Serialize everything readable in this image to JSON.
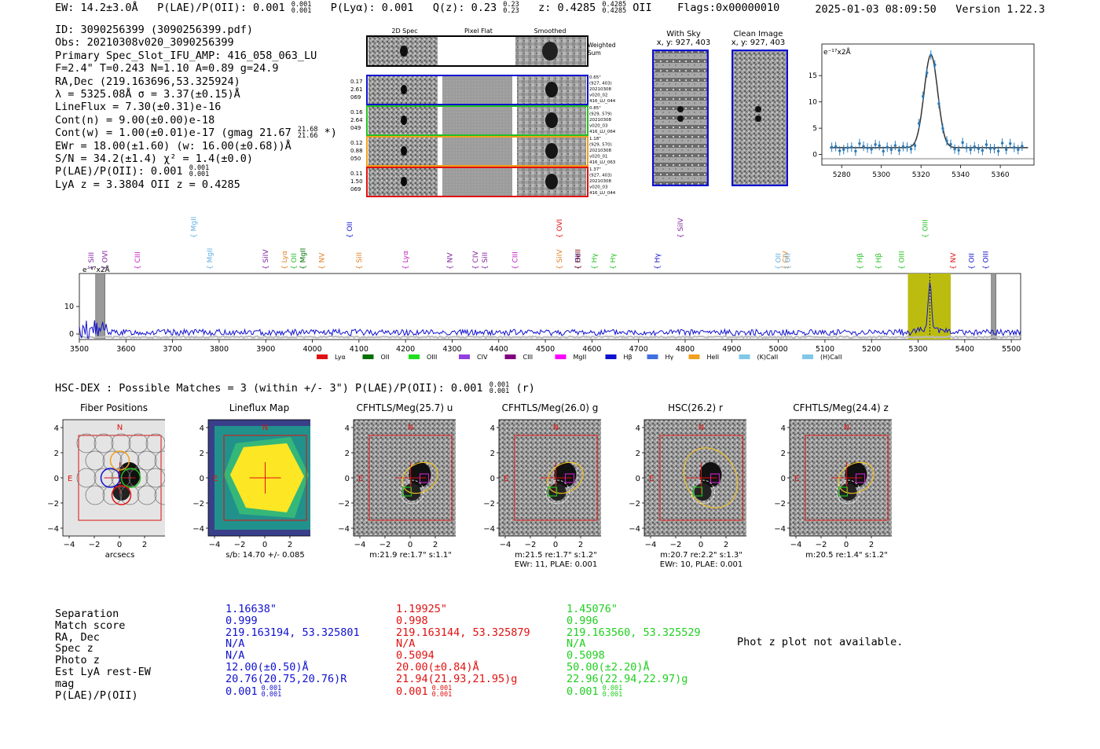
{
  "header": {
    "ew": "EW: 14.2±3.0Å",
    "plae_label": "P(LAE)/P(OII): 0.001",
    "plae_hi": "0.001",
    "plae_lo": "0.001",
    "plya": "P(Lyα): 0.001",
    "qz_label": "Q(z): 0.23",
    "qz_hi": "0.23",
    "qz_lo": "0.23",
    "z_label": "z: 0.4285",
    "z_hi": "0.4285",
    "z_lo": "0.4285",
    "z_line": "OII",
    "flags": "Flags:0x00000010",
    "datetime": "2025-01-03 08:09:50",
    "version": "Version 1.22.3"
  },
  "info": {
    "id": "ID: 3090256399 (3090256399.pdf)",
    "obs": "Obs: 20210308v020_3090256399",
    "primary": "Primary Spec_Slot_IFU_AMP: 416_058_063_LU",
    "params": "F=2.4\"  T=0.243  N=1.10  A=0.89  g=24.9",
    "radec": "RA,Dec (219.163696,53.325924)",
    "lambda": "λ = 5325.08Å  σ = 3.37(±0.15)Å",
    "lineflux": "LineFlux = 7.30(±0.31)e-16",
    "contn": "Cont(n) = 9.00(±0.00)e-18",
    "contw": "Cont(w) = 1.00(±0.01)e-17 (gmag 21.67",
    "contw_hi": "21.68",
    "contw_lo": "21.66",
    "contw_end": "*)",
    "ewr": "EWr = 18.00(±1.60) (w: 16.00(±0.68))Å",
    "sn": "S/N = 34.2(±1.4)  χ² = 1.4(±0.0)",
    "plae": "P(LAE)/P(OII): 0.001",
    "plae_hi": "0.001",
    "plae_lo": "0.001",
    "z": "LyA z = 3.3804  OII z = 0.4285"
  },
  "cutouts": {
    "col_2d": "2D Spec",
    "col_flat": "Pixel Flat",
    "col_smooth": "Smoothed",
    "weighted": "Weighted Sum",
    "rows": [
      {
        "l1": "0.17",
        "l2": "2.61",
        "l3": "069",
        "r1": "0.65\"",
        "r2": "(927, 403)",
        "r3": "20210308",
        "r4": "v020_02",
        "r5": "416_LU_044",
        "color": "#1010d0"
      },
      {
        "l1": "0.16",
        "l2": "2.64",
        "l3": "049",
        "r1": "0.85\"",
        "r2": "(929, 579)",
        "r3": "20210308",
        "r4": "v020_03",
        "r5": "416_LU_064",
        "color": "#20c020"
      },
      {
        "l1": "0.12",
        "l2": "0.88",
        "l3": "050",
        "r1": "1.18\"",
        "r2": "(929, 570)",
        "r3": "20210308",
        "r4": "v020_01",
        "r5": "416_LU_063",
        "color": "#f0a020"
      },
      {
        "l1": "0.11",
        "l2": "1.50",
        "l3": "069",
        "r1": "1.37\"",
        "r2": "(927, 403)",
        "r3": "20210308",
        "r4": "v020_03",
        "r5": "416_LU_044",
        "color": "#e01010"
      }
    ],
    "with_sky": "With Sky",
    "with_sky_xy": "x, y: 927, 403",
    "clean": "Clean Image",
    "clean_xy": "x, y: 927, 403"
  },
  "zoom_chart": {
    "ylabel": "e⁻¹⁷x2Å",
    "xticks": [
      "5280",
      "5300",
      "5320",
      "5340",
      "5360"
    ],
    "yticks": [
      "0",
      "5",
      "10",
      "15"
    ]
  },
  "chart_data": {
    "type": "line",
    "title": "",
    "xlabel": "",
    "ylabel": "e⁻¹⁷x2Å",
    "xlim": [
      3500,
      5520
    ],
    "ylim": [
      -2,
      22
    ],
    "xticks": [
      "3500",
      "3600",
      "3700",
      "3800",
      "3900",
      "4000",
      "4100",
      "4200",
      "4300",
      "4400",
      "4500",
      "4600",
      "4700",
      "4800",
      "4900",
      "5000",
      "5100",
      "5200",
      "5300",
      "5400",
      "5500"
    ],
    "yticks": [
      "0",
      "10"
    ],
    "peak": {
      "x": 5325,
      "y": 19
    },
    "lines": [
      {
        "name": "SiII",
        "x": 3530,
        "color": "#8020a0"
      },
      {
        "name": "OVI",
        "x": 3560,
        "color": "#8020a0"
      },
      {
        "name": "CIII",
        "x": 3630,
        "color": "#c020c0"
      },
      {
        "name": "MgII",
        "x": 3750,
        "color": "#60b0e0"
      },
      {
        "name": "MgII",
        "x": 3785,
        "color": "#60b0e0"
      },
      {
        "name": "SiIV",
        "x": 3905,
        "color": "#8020a0"
      },
      {
        "name": "Lyα",
        "x": 3945,
        "color": "#e08020"
      },
      {
        "name": "OII",
        "x": 3965,
        "color": "#20c020"
      },
      {
        "name": "MgII",
        "x": 3985,
        "color": "#007000"
      },
      {
        "name": "NV",
        "x": 4025,
        "color": "#e08020"
      },
      {
        "name": "OII",
        "x": 4085,
        "color": "#1010d0"
      },
      {
        "name": "SiII",
        "x": 4105,
        "color": "#e08020"
      },
      {
        "name": "Lyα",
        "x": 4205,
        "color": "#c020c0"
      },
      {
        "name": "NV",
        "x": 4300,
        "color": "#8020a0"
      },
      {
        "name": "CIV",
        "x": 4355,
        "color": "#8020a0"
      },
      {
        "name": "SiII",
        "x": 4375,
        "color": "#8020a0"
      },
      {
        "name": "CIII",
        "x": 4440,
        "color": "#c020c0"
      },
      {
        "name": "OVI",
        "x": 4535,
        "color": "#e01010"
      },
      {
        "name": "SiIV",
        "x": 4535,
        "color": "#e08020"
      },
      {
        "name": "OII",
        "x": 4575,
        "color": "#1010d0"
      },
      {
        "name": "HeII",
        "x": 4575,
        "color": "#800000"
      },
      {
        "name": "Hγ",
        "x": 4610,
        "color": "#20c020"
      },
      {
        "name": "Hγ",
        "x": 4650,
        "color": "#20c020"
      },
      {
        "name": "Hγ",
        "x": 4745,
        "color": "#1010d0"
      },
      {
        "name": "SiIV",
        "x": 4795,
        "color": "#8020a0"
      },
      {
        "name": "OII",
        "x": 5005,
        "color": "#60b0e0"
      },
      {
        "name": "CIV",
        "x": 5020,
        "color": "#e08020"
      },
      {
        "name": "OII",
        "x": 5025,
        "color": "#60b0e0"
      },
      {
        "name": "Hβ",
        "x": 5180,
        "color": "#20c020"
      },
      {
        "name": "Hβ",
        "x": 5220,
        "color": "#20c020"
      },
      {
        "name": "OIII",
        "x": 5270,
        "color": "#20c020"
      },
      {
        "name": "OIII",
        "x": 5320,
        "color": "#20c020"
      },
      {
        "name": "NV",
        "x": 5380,
        "color": "#e01010"
      },
      {
        "name": "OII",
        "x": 5420,
        "color": "#1010d0"
      },
      {
        "name": "OIII",
        "x": 5450,
        "color": "#1010d0"
      }
    ],
    "legend": [
      {
        "label": "Lyα",
        "color": "#e01010"
      },
      {
        "label": "OII",
        "color": "#007000"
      },
      {
        "label": "OIII",
        "color": "#20e020"
      },
      {
        "label": "CIV",
        "color": "#9040e0"
      },
      {
        "label": "CIII",
        "color": "#800080"
      },
      {
        "label": "MgII",
        "color": "#ff00ff"
      },
      {
        "label": "Hβ",
        "color": "#1010d0"
      },
      {
        "label": "Hγ",
        "color": "#4070e0"
      },
      {
        "label": "HeII",
        "color": "#f0a020"
      },
      {
        "label": "(K)CaII",
        "color": "#80c8e8"
      },
      {
        "label": "(H)CaII",
        "color": "#80c8e8"
      }
    ]
  },
  "hsc": {
    "line": "HSC-DEX : Possible Matches = 3 (within +/- 3\")  P(LAE)/P(OII): 0.001",
    "hi": "0.001",
    "lo": "0.001",
    "end": "(r)"
  },
  "stamps": [
    {
      "title": "Fiber Positions",
      "cap1": "arcsecs",
      "cap2": ""
    },
    {
      "title": "Lineflux Map",
      "cap1": "s/b: 14.70 +/- 0.085",
      "cap2": ""
    },
    {
      "title": "CFHTLS/Meg(25.7) u",
      "cap1": "m:21.9  re:1.7\"  s:1.1\"",
      "cap2": ""
    },
    {
      "title": "CFHTLS/Meg(26.0) g",
      "cap1": "m:21.5  re:1.7\"  s:1.2\"",
      "cap2": "EWr: 11, PLAE: 0.001"
    },
    {
      "title": "HSC(26.2) r",
      "cap1": "m:20.7  re:2.2\"  s:1.3\"",
      "cap2": "EWr: 10, PLAE: 0.001"
    },
    {
      "title": "CFHTLS/Meg(24.4) z",
      "cap1": "m:20.5  re:1.4\"  s:1.2\"",
      "cap2": ""
    }
  ],
  "stamp_axes": {
    "yticks": [
      "4",
      "2",
      "0",
      "−2",
      "−4"
    ],
    "xticks": [
      "−4",
      "−2",
      "0",
      "2",
      "4"
    ],
    "n": "N",
    "e": "E"
  },
  "match_labels": [
    "Separation",
    "Match score",
    "RA, Dec",
    "Spec z",
    "Photo z",
    "Est LyA rest-EW",
    "mag",
    "P(LAE)/P(OII)"
  ],
  "matches": [
    {
      "color": "#1010d0",
      "values": [
        "1.16638\"",
        "0.999",
        "219.163194, 53.325801",
        "N/A",
        "N/A",
        "12.00(±0.50)Å",
        "20.76(20.75,20.76)R",
        "0.001"
      ],
      "hi": "0.001",
      "lo": "0.001"
    },
    {
      "color": "#e01010",
      "values": [
        "1.19925\"",
        "0.998",
        "219.163144, 53.325879",
        "N/A",
        "0.5094",
        "20.00(±0.84)Å",
        "21.94(21.93,21.95)g",
        "0.001"
      ],
      "hi": "0.001",
      "lo": "0.001"
    },
    {
      "color": "#20d020",
      "values": [
        "1.45076\"",
        "0.996",
        "219.163560, 53.325529",
        "N/A",
        "0.5098",
        "50.00(±2.20)Å",
        "22.96(22.94,22.97)g",
        "0.001"
      ],
      "hi": "0.001",
      "lo": "0.001"
    }
  ],
  "phot_z": "Phot z plot not available."
}
